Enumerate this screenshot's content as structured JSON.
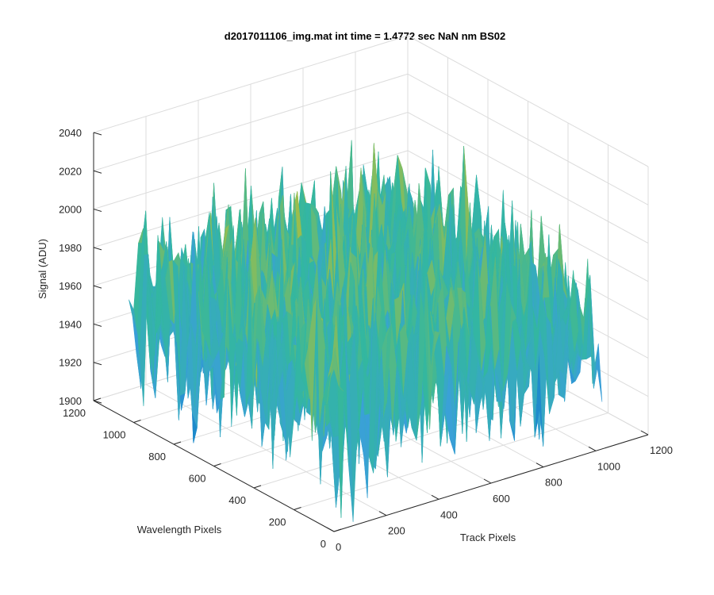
{
  "chart_data": {
    "type": "surface",
    "title": "d2017011106_img.mat int time = 1.4772 sec  NaN nm BS02",
    "xlabel": "Track Pixels",
    "ylabel": "Wavelength Pixels",
    "zlabel": "Signal (ADU)",
    "xlim": [
      0,
      1200
    ],
    "ylim": [
      0,
      1200
    ],
    "zlim": [
      1900,
      2040
    ],
    "xticks": [
      0,
      200,
      400,
      600,
      800,
      1000,
      1200
    ],
    "yticks": [
      0,
      200,
      400,
      600,
      800,
      1000,
      1200
    ],
    "zticks": [
      1900,
      1920,
      1940,
      1960,
      1980,
      2000,
      2020,
      2040
    ],
    "data_extent": {
      "x": [
        0,
        1024
      ],
      "y": [
        0,
        1024
      ]
    },
    "signal_mean": 1962,
    "signal_noise_range": [
      1910,
      2030
    ],
    "grid": true,
    "colormap": "parula",
    "colors": [
      "#0072bd",
      "#3aa0d8",
      "#33b7a0",
      "#a4be45",
      "#e1c03a"
    ]
  }
}
